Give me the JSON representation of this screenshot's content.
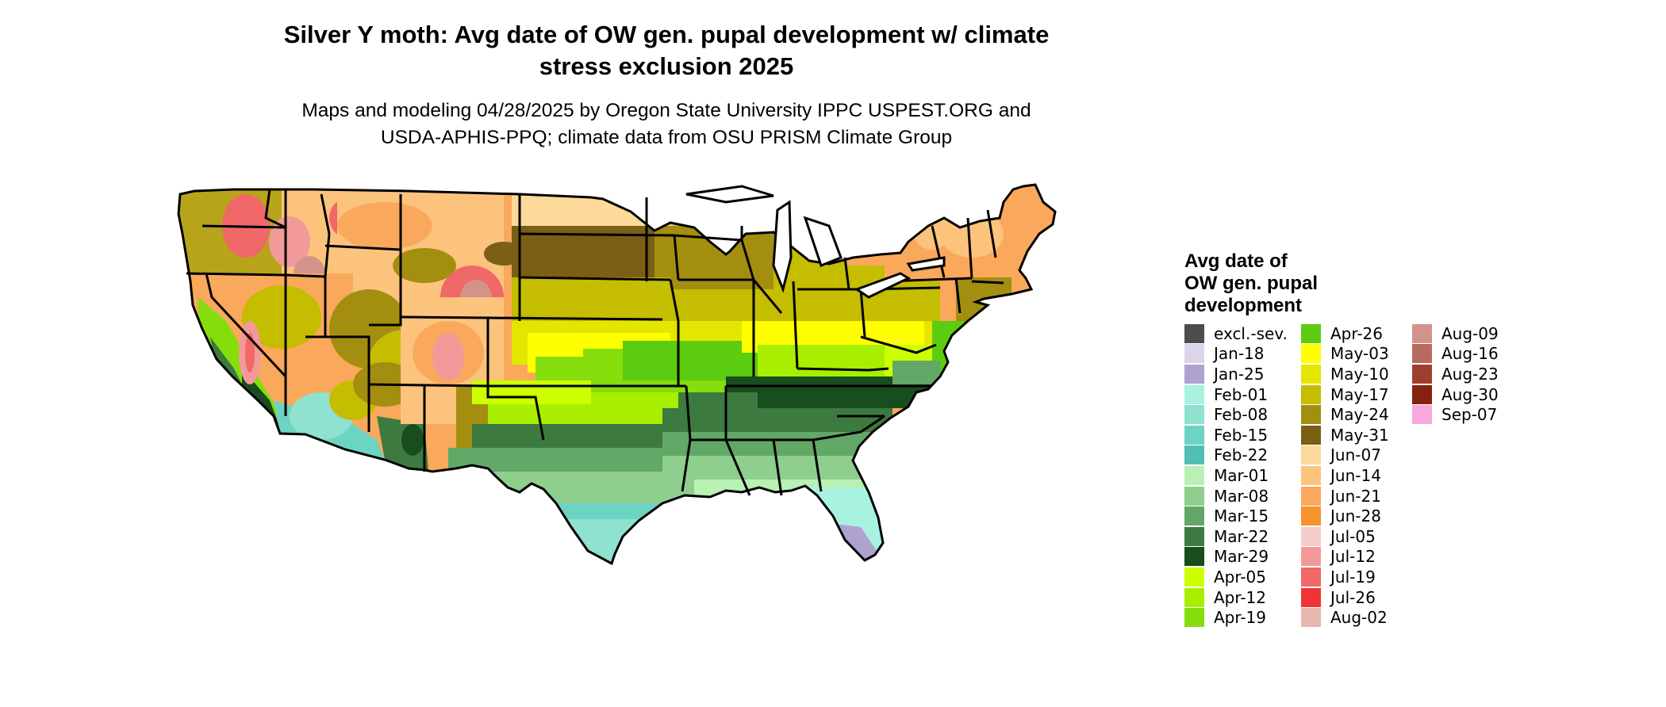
{
  "title_line1": "Silver Y moth: Avg date of OW gen. pupal development w/ climate",
  "title_line2": "stress exclusion 2025",
  "subtitle_line1": "Maps and modeling 04/28/2025 by Oregon State University IPPC USPEST.ORG and",
  "subtitle_line2": "USDA-APHIS-PPQ; climate data from OSU PRISM Climate Group",
  "legend": {
    "title_line1": "Avg date of",
    "title_line2": "OW gen. pupal",
    "title_line3": "development",
    "items": [
      {
        "label": "excl.-sev.",
        "color": "#4d4d4d"
      },
      {
        "label": "Jan-18",
        "color": "#dcd4ea"
      },
      {
        "label": "Jan-25",
        "color": "#b0a2cf"
      },
      {
        "label": "Feb-01",
        "color": "#a8f2e0"
      },
      {
        "label": "Feb-08",
        "color": "#8ee2cf"
      },
      {
        "label": "Feb-15",
        "color": "#6dd4c4"
      },
      {
        "label": "Feb-22",
        "color": "#52bfb2"
      },
      {
        "label": "Mar-01",
        "color": "#b9f0b4"
      },
      {
        "label": "Mar-08",
        "color": "#8fcf8e"
      },
      {
        "label": "Mar-15",
        "color": "#62a867"
      },
      {
        "label": "Mar-22",
        "color": "#3c7a40"
      },
      {
        "label": "Mar-29",
        "color": "#184d1d"
      },
      {
        "label": "Apr-05",
        "color": "#ccff00"
      },
      {
        "label": "Apr-12",
        "color": "#a8ee00"
      },
      {
        "label": "Apr-19",
        "color": "#86dd0c"
      },
      {
        "label": "Apr-26",
        "color": "#5ccc10"
      },
      {
        "label": "May-03",
        "color": "#ffff00"
      },
      {
        "label": "May-10",
        "color": "#e3e600"
      },
      {
        "label": "May-17",
        "color": "#c4bd00"
      },
      {
        "label": "May-24",
        "color": "#a38e10"
      },
      {
        "label": "May-31",
        "color": "#7a5f14"
      },
      {
        "label": "Jun-07",
        "color": "#fdd99a"
      },
      {
        "label": "Jun-14",
        "color": "#fcc37d"
      },
      {
        "label": "Jun-21",
        "color": "#faa85c"
      },
      {
        "label": "Jun-28",
        "color": "#f7932e"
      },
      {
        "label": "Jul-05",
        "color": "#f5cccc"
      },
      {
        "label": "Jul-12",
        "color": "#f29a9a"
      },
      {
        "label": "Jul-19",
        "color": "#f06868"
      },
      {
        "label": "Jul-26",
        "color": "#f03434"
      },
      {
        "label": "Aug-02",
        "color": "#e6b8b0"
      },
      {
        "label": "Aug-09",
        "color": "#d4938a"
      },
      {
        "label": "Aug-16",
        "color": "#b86a5e"
      },
      {
        "label": "Aug-23",
        "color": "#9e3f2e"
      },
      {
        "label": "Aug-30",
        "color": "#862010"
      },
      {
        "label": "Sep-07",
        "color": "#f8a8dc"
      }
    ]
  }
}
